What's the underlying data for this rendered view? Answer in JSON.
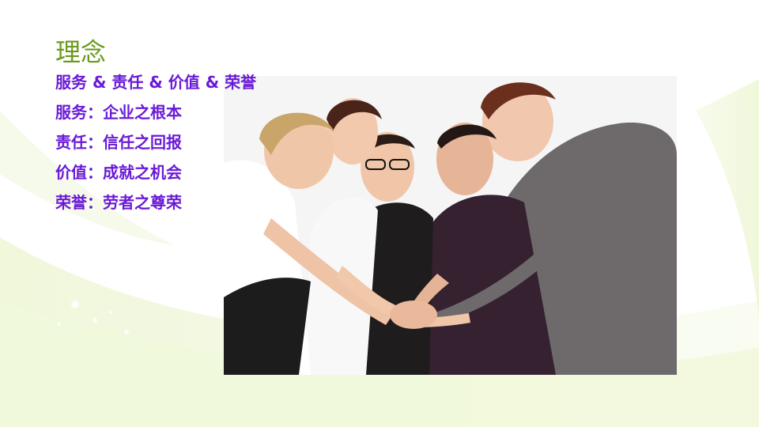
{
  "slide": {
    "title": "理念",
    "headline": "服务 & 责任 & 价值 & 荣誉",
    "items": [
      "服务：企业之根本",
      "责任：信任之回报",
      "价值：成就之机会",
      "荣誉：劳者之尊荣"
    ]
  },
  "colors": {
    "title": "#6c9a1e",
    "text": "#6a1ad6",
    "background_accent": "#e8f3c4"
  },
  "photo": {
    "subject": "team-hands-together-photo"
  }
}
